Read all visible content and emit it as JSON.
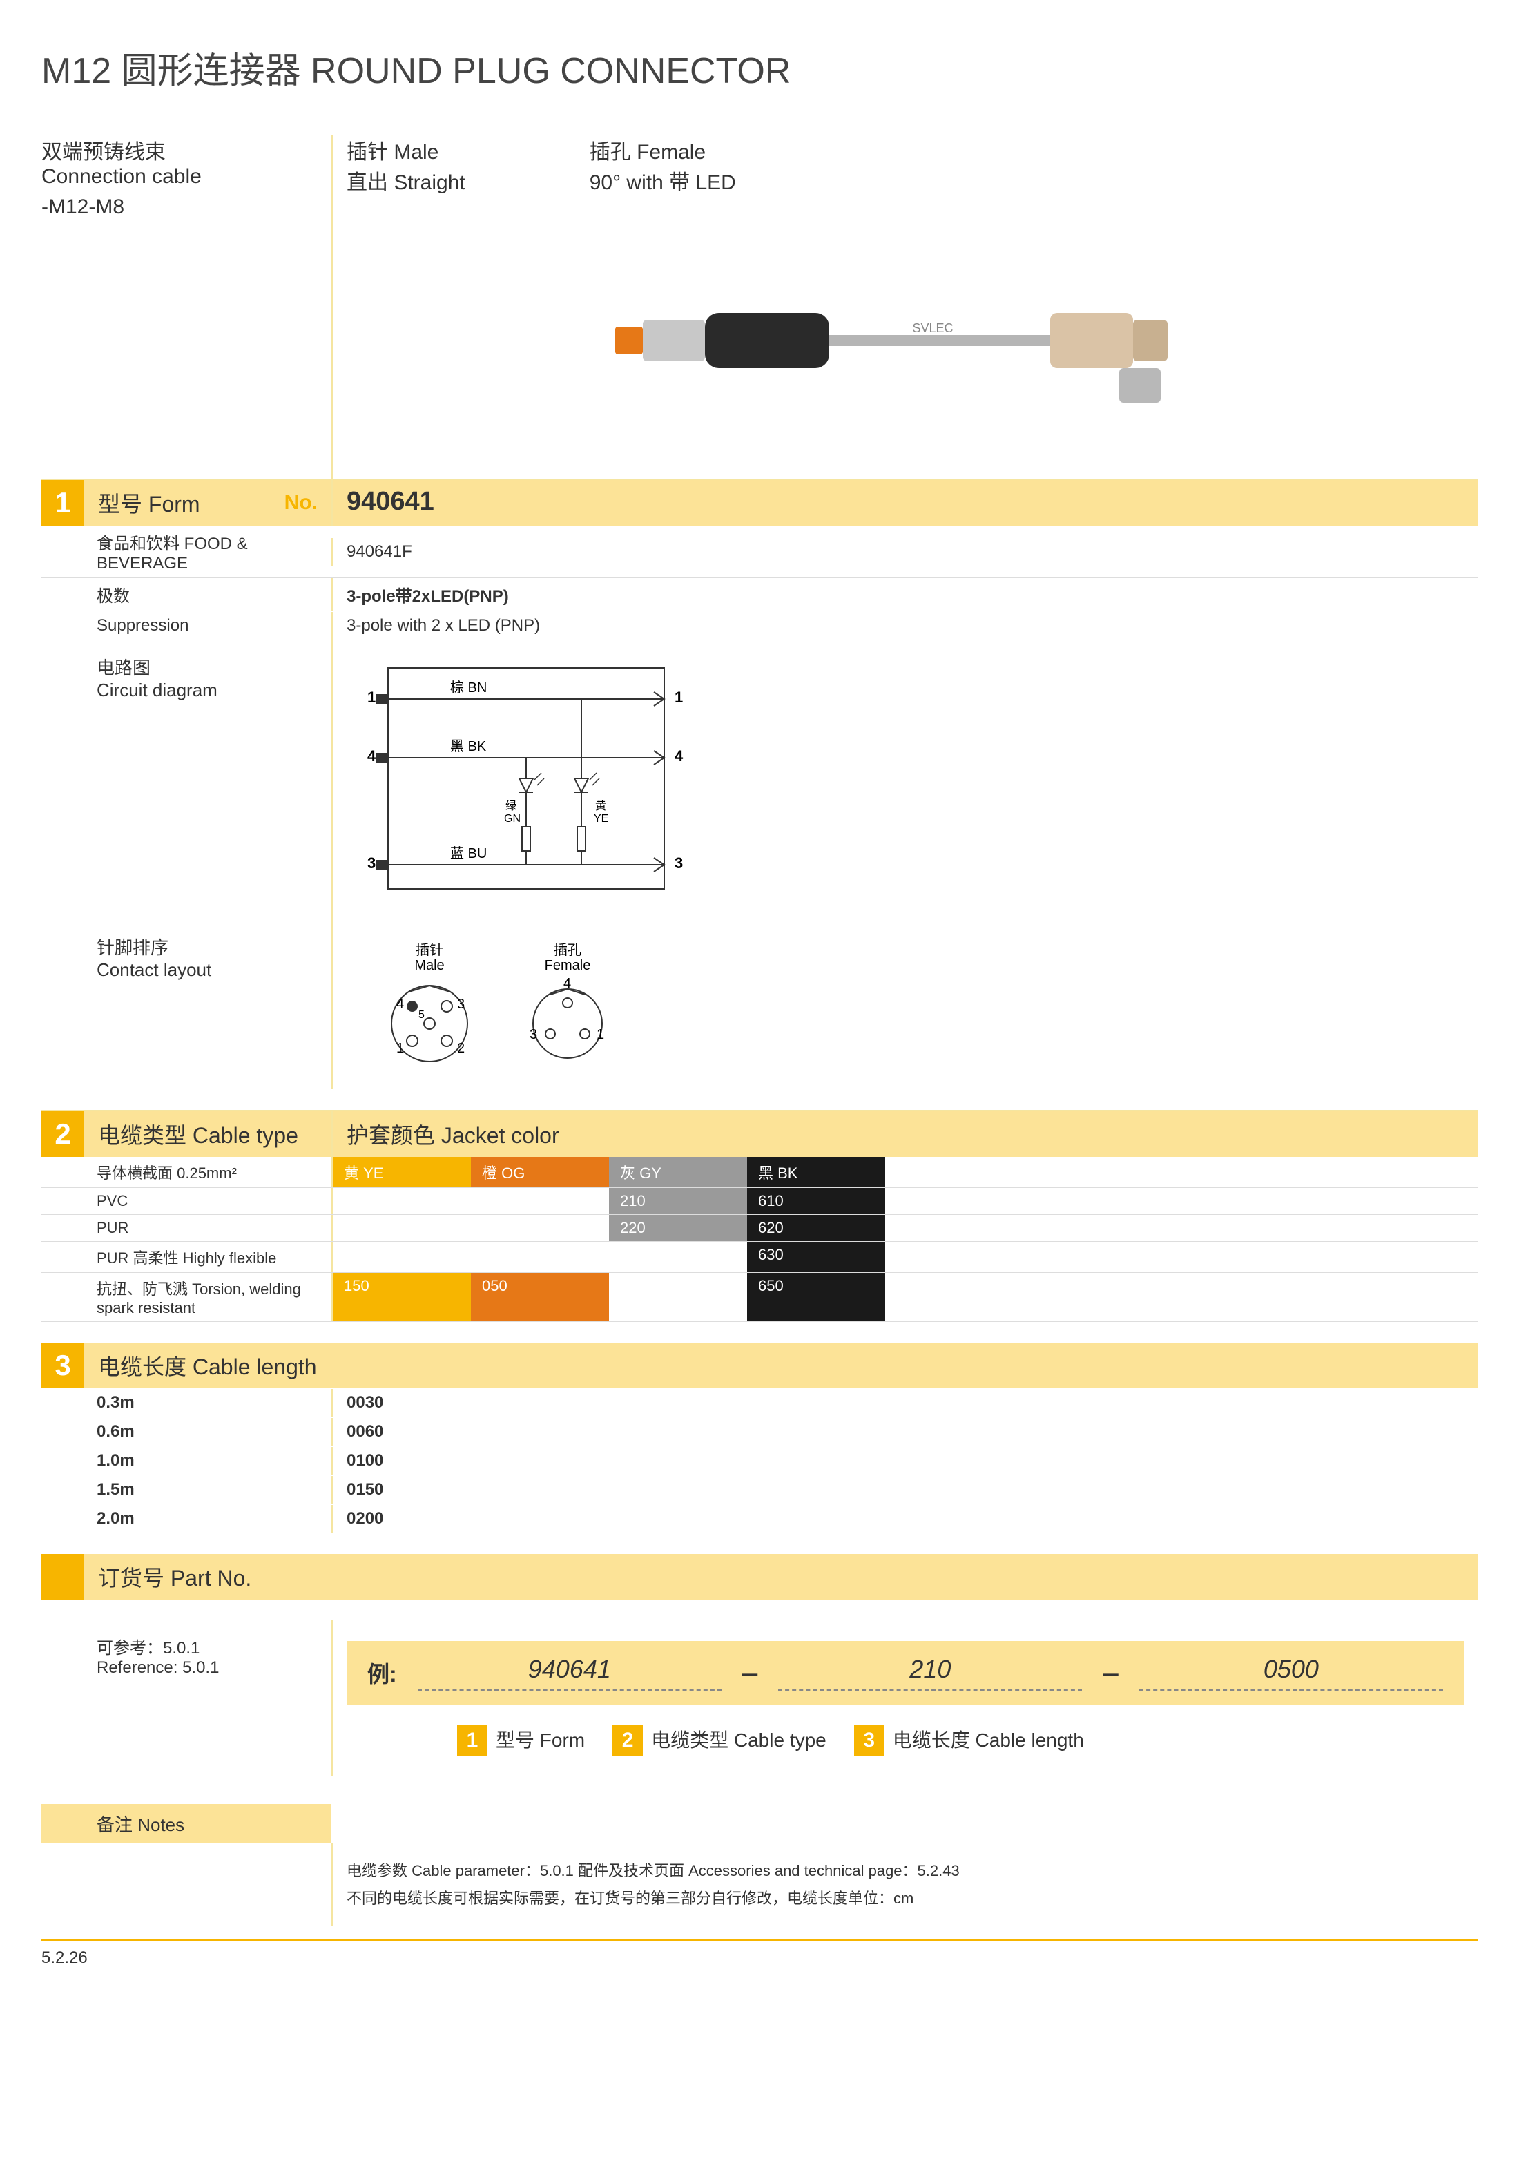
{
  "title": "M12 圆形连接器  ROUND PLUG CONNECTOR",
  "header": {
    "left_cn": "双端预铸线束",
    "left_en": "Connection cable",
    "left_sub": "-M12-M8",
    "specs": [
      {
        "r1": "插针  Male",
        "r2": "直出  Straight"
      },
      {
        "r1": "插孔  Female",
        "r2": "90°   with 带 LED"
      }
    ]
  },
  "section1": {
    "num": "1",
    "title": "型号 Form",
    "no_label": "No.",
    "main_no": "940641",
    "rows": [
      {
        "l": "食品和饮料 FOOD & BEVERAGE",
        "r": "940641F",
        "small": true
      },
      {
        "l": "极数",
        "r": "3-pole带2xLED(PNP)",
        "bold_r": true
      },
      {
        "l": "Suppression",
        "r": "3-pole with 2 x LED (PNP)"
      }
    ],
    "circuit_cn": "电路图",
    "circuit_en": "Circuit diagram",
    "circuit_labels": {
      "bn": "棕 BN",
      "bk": "黑 BK",
      "bu": "蓝 BU",
      "gn": "绿\nGN",
      "ye": "黄\nYE"
    },
    "contact_cn": "针脚排序",
    "contact_en": "Contact layout",
    "contact_labels": {
      "male_cn": "插针",
      "male_en": "Male",
      "female_cn": "插孔",
      "female_en": "Female"
    }
  },
  "section2": {
    "num": "2",
    "title_l": "电缆类型 Cable type",
    "title_r": "护套颜色 Jacket color",
    "cross_section": "导体横截面  0.25mm²",
    "colors": [
      {
        "label": "黄 YE",
        "bg": "#f7b500"
      },
      {
        "label": "橙 OG",
        "bg": "#e67817"
      },
      {
        "label": "灰 GY",
        "bg": "#9a9a9a"
      },
      {
        "label": "黑 BK",
        "bg": "#1a1a1a"
      }
    ],
    "rows": [
      {
        "label": "PVC",
        "cells": [
          "",
          "",
          "210",
          "610"
        ]
      },
      {
        "label": "PUR",
        "cells": [
          "",
          "",
          "220",
          "620"
        ]
      },
      {
        "label": "PUR 高柔性 Highly flexible",
        "cells": [
          "",
          "",
          "",
          "630"
        ]
      },
      {
        "label": "抗扭、防飞溅 Torsion, welding spark resistant",
        "cells": [
          "150",
          "050",
          "",
          "650"
        ],
        "small": true
      }
    ]
  },
  "section3": {
    "num": "3",
    "title": "电缆长度 Cable length",
    "rows": [
      {
        "l": "0.3m",
        "r": "0030"
      },
      {
        "l": "0.6m",
        "r": "0060"
      },
      {
        "l": "1.0m",
        "r": "0100"
      },
      {
        "l": "1.5m",
        "r": "0150"
      },
      {
        "l": "2.0m",
        "r": "0200"
      }
    ]
  },
  "partno": {
    "title": "订货号 Part No.",
    "ref_cn": "可参考：5.0.1",
    "ref_en": "Reference: 5.0.1",
    "example_label": "例:",
    "fields": [
      "940641",
      "210",
      "0500"
    ],
    "legend": [
      {
        "n": "1",
        "t": "型号 Form"
      },
      {
        "n": "2",
        "t": "电缆类型 Cable type"
      },
      {
        "n": "3",
        "t": "电缆长度 Cable length"
      }
    ]
  },
  "notes": {
    "title": "备注 Notes",
    "line1": "电缆参数  Cable parameter：5.0.1       配件及技术页面  Accessories and technical page：5.2.43",
    "line2": "不同的电缆长度可根据实际需要，在订货号的第三部分自行修改，电缆长度单位：cm"
  },
  "page_num": "5.2.26"
}
